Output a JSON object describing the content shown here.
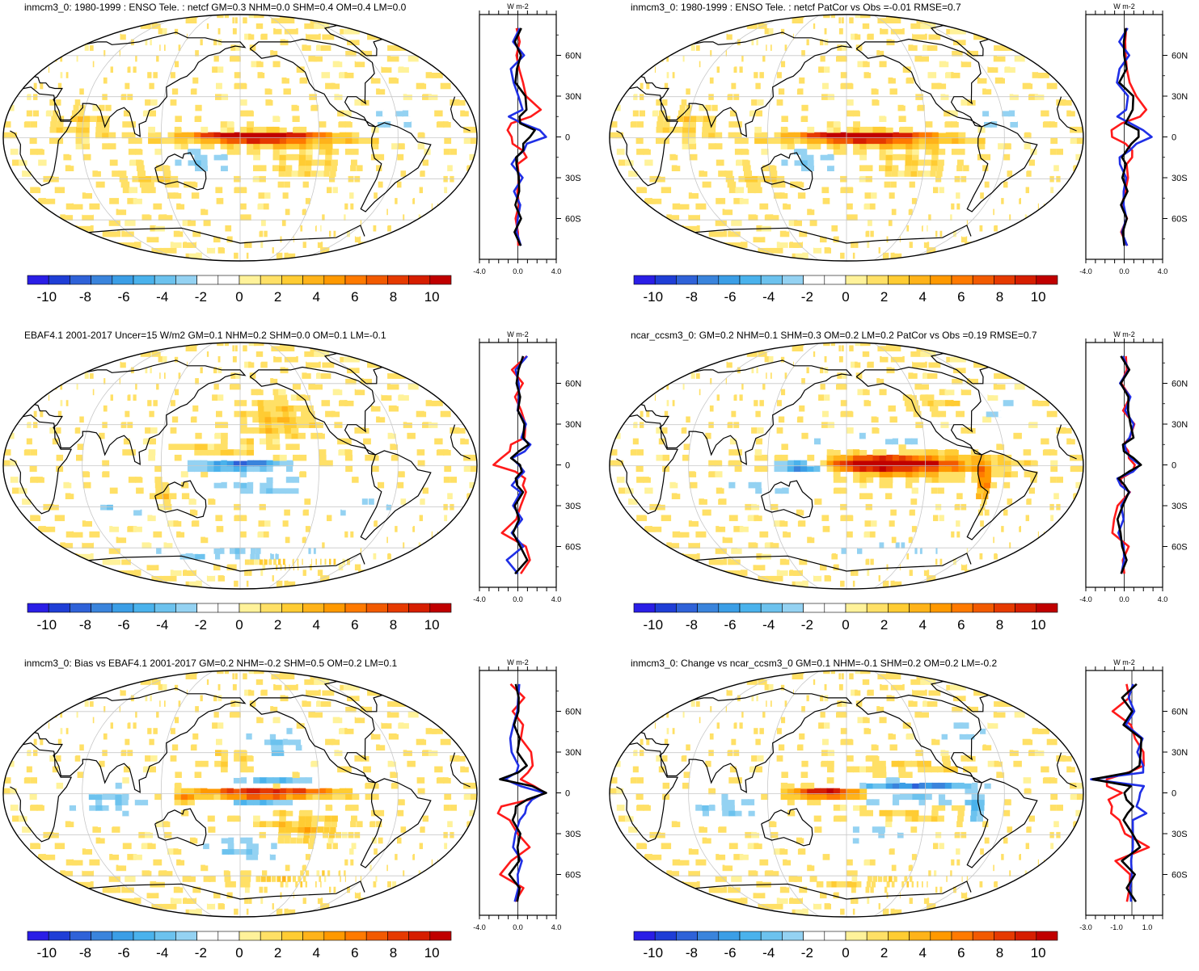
{
  "colors": {
    "scale": [
      "#2a1ee6",
      "#1f3ed6",
      "#2f62d8",
      "#3a84dc",
      "#3b9ee6",
      "#4ab2ec",
      "#6cc2ee",
      "#94d2f2",
      "#ffffff",
      "#ffffff",
      "#fff29a",
      "#ffe066",
      "#ffcc33",
      "#ffb31a",
      "#ff9900",
      "#ff7a00",
      "#f25a00",
      "#e63a00",
      "#d61e00",
      "#c00000"
    ],
    "red": "#ff1a1a",
    "blue": "#1f2fe6",
    "black": "#000000",
    "land": "#000000",
    "grid": "#c8c8c8"
  },
  "chart_data": [
    {
      "type": "heatmap",
      "title": "inmcm3_0: 1980-1999 : ENSO Tele. : netcf GM=0.3 NHM=0.0 SHM=0.4 OM=0.4 LM=0.0",
      "colorbar_ticks": [
        "-10",
        "-8",
        "-6",
        "-4",
        "-2",
        "0",
        "2",
        "4",
        "6",
        "8",
        "10"
      ],
      "colorbar_range": [
        -11,
        11
      ],
      "blobs": [
        {
          "lon": 190,
          "lat": 2,
          "rlon": 45,
          "rlat": 4,
          "value": 9
        },
        {
          "lon": 200,
          "lat": 0,
          "rlon": 70,
          "rlat": 7,
          "value": 5
        },
        {
          "lon": 195,
          "lat": 6,
          "rlon": 60,
          "rlat": 3,
          "value": -4
        },
        {
          "lon": 230,
          "lat": -20,
          "rlon": 30,
          "rlat": 10,
          "value": 2
        },
        {
          "lon": 150,
          "lat": -15,
          "rlon": 20,
          "rlat": 10,
          "value": -3
        },
        {
          "lon": 300,
          "lat": 15,
          "rlon": 20,
          "rlat": 12,
          "value": -2
        },
        {
          "lon": 60,
          "lat": 10,
          "rlon": 25,
          "rlat": 12,
          "value": 2
        },
        {
          "lon": 110,
          "lat": -30,
          "rlon": 25,
          "rlat": 8,
          "value": 2
        }
      ],
      "profile": {
        "label": "W m-2",
        "xlim": [
          -4,
          4
        ],
        "xticks": [
          "-4.0",
          "0.0",
          "4.0"
        ],
        "lat": [
          80,
          70,
          60,
          50,
          40,
          30,
          20,
          15,
          10,
          5,
          0,
          -5,
          -10,
          -15,
          -20,
          -30,
          -40,
          -50,
          -60,
          -70,
          -80
        ],
        "red": [
          0.0,
          0.2,
          -0.3,
          0.4,
          0.2,
          1.2,
          2.1,
          1.6,
          -0.5,
          -1.4,
          -0.7,
          -0.2,
          0.4,
          0.6,
          0.2,
          -0.2,
          0.3,
          -0.2,
          0.0,
          -0.1,
          0.0
        ],
        "blue": [
          0.0,
          -0.2,
          0.3,
          -0.4,
          -0.7,
          0.2,
          0.5,
          -0.6,
          0.3,
          2.0,
          3.2,
          1.1,
          0.3,
          -0.2,
          -0.3,
          0.2,
          -0.2,
          0.2,
          -0.1,
          0.1,
          0.0
        ],
        "black": [
          0.0,
          0.0,
          0.1,
          0.0,
          -0.2,
          0.6,
          1.2,
          0.3,
          -0.1,
          1.8,
          1.6,
          0.4,
          0.3,
          0.1,
          0.0,
          0.1,
          0.0,
          0.0,
          0.0,
          0.0,
          0.0
        ]
      }
    },
    {
      "type": "heatmap",
      "title": "inmcm3_0: 1980-1999 : ENSO Tele. : netcf PatCor vs Obs =-0.01 RMSE=0.7",
      "colorbar_ticks": [
        "-10",
        "-8",
        "-6",
        "-4",
        "-2",
        "0",
        "2",
        "4",
        "6",
        "8",
        "10"
      ],
      "colorbar_range": [
        -11,
        11
      ],
      "blobs": [
        {
          "lon": 190,
          "lat": 2,
          "rlon": 45,
          "rlat": 4,
          "value": 9
        },
        {
          "lon": 200,
          "lat": 0,
          "rlon": 70,
          "rlat": 7,
          "value": 5
        },
        {
          "lon": 195,
          "lat": 6,
          "rlon": 60,
          "rlat": 3,
          "value": -4
        },
        {
          "lon": 230,
          "lat": -20,
          "rlon": 30,
          "rlat": 10,
          "value": 2
        },
        {
          "lon": 150,
          "lat": -15,
          "rlon": 20,
          "rlat": 10,
          "value": -3
        },
        {
          "lon": 300,
          "lat": 15,
          "rlon": 20,
          "rlat": 12,
          "value": -2
        },
        {
          "lon": 60,
          "lat": 10,
          "rlon": 25,
          "rlat": 12,
          "value": 2
        },
        {
          "lon": 110,
          "lat": -30,
          "rlon": 25,
          "rlat": 8,
          "value": 2
        }
      ],
      "profile": {
        "label": "W m-2",
        "xlim": [
          -4,
          4
        ],
        "xticks": [
          "-4.0",
          "0.0",
          "4.0"
        ],
        "lat": [
          80,
          70,
          60,
          50,
          40,
          30,
          20,
          15,
          10,
          5,
          0,
          -5,
          -10,
          -15,
          -20,
          -30,
          -40,
          -50,
          -60,
          -70,
          -80
        ],
        "red": [
          0.0,
          0.4,
          -0.2,
          0.6,
          0.3,
          1.4,
          2.3,
          2.0,
          -0.4,
          -1.6,
          -1.0,
          0.3,
          0.5,
          0.8,
          0.6,
          0.1,
          0.3,
          -0.3,
          0.2,
          -0.1,
          0.0
        ],
        "blue": [
          0.0,
          -0.2,
          0.3,
          -0.4,
          -0.7,
          0.2,
          0.5,
          -0.6,
          0.3,
          2.0,
          3.2,
          1.1,
          0.3,
          -0.2,
          -0.3,
          0.2,
          -0.2,
          0.2,
          -0.1,
          0.1,
          0.0
        ],
        "black": [
          0.0,
          0.0,
          0.1,
          0.0,
          -0.2,
          0.6,
          1.2,
          0.3,
          -0.1,
          1.8,
          1.6,
          0.4,
          0.3,
          0.1,
          0.0,
          0.1,
          0.0,
          0.0,
          0.0,
          0.0,
          0.0
        ]
      }
    },
    {
      "type": "heatmap",
      "title": "EBAF4.1 2001-2017 Uncer=15 W/m2 GM=0.1 NHM=0.2 SHM=0.0 OM=0.1 LM=-0.1",
      "colorbar_ticks": [
        "-10",
        "-8",
        "-6",
        "-4",
        "-2",
        "0",
        "2",
        "4",
        "6",
        "8",
        "10"
      ],
      "colorbar_range": [
        -11,
        11
      ],
      "blobs": [
        {
          "lon": 180,
          "lat": 1,
          "rlon": 35,
          "rlat": 4,
          "value": -8
        },
        {
          "lon": 210,
          "lat": 35,
          "rlon": 25,
          "rlat": 15,
          "value": 3
        },
        {
          "lon": 165,
          "lat": 12,
          "rlon": 35,
          "rlat": 6,
          "value": 2
        },
        {
          "lon": 200,
          "lat": -15,
          "rlon": 40,
          "rlat": 7,
          "value": -3
        },
        {
          "lon": 230,
          "lat": 5,
          "rlon": 30,
          "rlat": 3,
          "value": 2
        },
        {
          "lon": 120,
          "lat": -22,
          "rlon": 15,
          "rlat": 8,
          "value": 2
        },
        {
          "lon": 80,
          "lat": -30,
          "rlon": 25,
          "rlat": 8,
          "value": -2
        },
        {
          "lon": 180,
          "lat": -65,
          "rlon": 90,
          "rlat": 5,
          "value": -3
        },
        {
          "lon": 230,
          "lat": -70,
          "rlon": 60,
          "rlat": 4,
          "value": 3
        },
        {
          "lon": 280,
          "lat": -30,
          "rlon": 25,
          "rlat": 8,
          "value": -2
        }
      ],
      "profile": {
        "label": "W m-2",
        "xlim": [
          -4,
          4
        ],
        "xticks": [
          "-4.0",
          "0.0",
          "4.0"
        ],
        "lat": [
          80,
          70,
          60,
          50,
          40,
          30,
          20,
          15,
          10,
          5,
          0,
          -5,
          -10,
          -15,
          -20,
          -30,
          -40,
          -50,
          -60,
          -70,
          -80
        ],
        "red": [
          0.6,
          -0.3,
          0.3,
          -0.2,
          0.4,
          0.6,
          1.0,
          -0.6,
          -1.2,
          -1.7,
          -2.2,
          -0.4,
          0.5,
          0.8,
          1.0,
          0.3,
          -0.3,
          -1.4,
          0.5,
          1.6,
          0.0
        ],
        "blue": [
          0.8,
          -0.2,
          0.2,
          -0.1,
          0.3,
          0.5,
          0.7,
          1.1,
          0.5,
          -0.3,
          0.2,
          0.3,
          0.0,
          -0.3,
          0.1,
          -0.2,
          0.1,
          -0.3,
          0.3,
          -1.0,
          0.0
        ],
        "black": [
          0.7,
          -0.2,
          0.2,
          -0.1,
          0.3,
          0.5,
          0.6,
          0.8,
          0.2,
          -0.4,
          0.0,
          0.2,
          0.1,
          0.0,
          0.2,
          0.0,
          -0.1,
          -0.4,
          0.3,
          0.8,
          0.0
        ]
      }
    },
    {
      "type": "heatmap",
      "title": "ncar_ccsm3_0: GM=0.2 NHM=0.1 SHM=0.3 OM=0.2 LM=0.2 PatCor vs Obs =0.19 RMSE=0.7",
      "colorbar_ticks": [
        "-10",
        "-8",
        "-6",
        "-4",
        "-2",
        "0",
        "2",
        "4",
        "6",
        "8",
        "10"
      ],
      "colorbar_range": [
        -11,
        11
      ],
      "blobs": [
        {
          "lon": 205,
          "lat": 2,
          "rlon": 55,
          "rlat": 5,
          "value": 9
        },
        {
          "lon": 215,
          "lat": 0,
          "rlon": 75,
          "rlat": 9,
          "value": 5
        },
        {
          "lon": 145,
          "lat": 0,
          "rlon": 20,
          "rlat": 4,
          "value": -9
        },
        {
          "lon": 160,
          "lat": 0,
          "rlon": 30,
          "rlat": 9,
          "value": -3
        },
        {
          "lon": 285,
          "lat": -12,
          "rlon": 6,
          "rlat": 14,
          "value": 5
        },
        {
          "lon": 200,
          "lat": 18,
          "rlon": 60,
          "rlat": 4,
          "value": -2
        },
        {
          "lon": 120,
          "lat": -15,
          "rlon": 30,
          "rlat": 6,
          "value": -2
        },
        {
          "lon": 220,
          "lat": -60,
          "rlon": 70,
          "rlat": 4,
          "value": -2
        },
        {
          "lon": 310,
          "lat": 40,
          "rlon": 20,
          "rlat": 8,
          "value": -2
        },
        {
          "lon": 250,
          "lat": 45,
          "rlon": 25,
          "rlat": 6,
          "value": 2
        }
      ],
      "profile": {
        "label": "W m-2",
        "xlim": [
          -4,
          4
        ],
        "xticks": [
          "-4.0",
          "0.0",
          "4.0"
        ],
        "lat": [
          80,
          70,
          60,
          50,
          40,
          30,
          20,
          15,
          10,
          5,
          0,
          -5,
          -10,
          -15,
          -20,
          -30,
          -40,
          -50,
          -60,
          -70,
          -80
        ],
        "red": [
          0.0,
          0.3,
          -0.2,
          0.4,
          0.2,
          0.7,
          0.9,
          -0.3,
          0.2,
          0.8,
          1.2,
          0.5,
          -0.3,
          0.0,
          0.4,
          -0.4,
          -1.4,
          -0.9,
          0.2,
          0.0,
          0.0
        ],
        "blue": [
          0.0,
          0.2,
          -0.1,
          0.3,
          0.4,
          0.8,
          0.6,
          -0.3,
          0.3,
          1.0,
          1.4,
          0.7,
          -0.4,
          -0.3,
          0.2,
          0.0,
          -0.3,
          -0.5,
          0.0,
          -0.2,
          0.0
        ],
        "black": [
          0.0,
          0.2,
          -0.1,
          0.3,
          0.4,
          0.8,
          0.7,
          -0.3,
          0.3,
          1.0,
          1.4,
          0.6,
          -0.3,
          -0.2,
          0.3,
          -0.1,
          -0.6,
          -0.6,
          0.1,
          -0.1,
          0.0
        ]
      }
    },
    {
      "type": "heatmap",
      "title": "inmcm3_0: Bias vs EBAF4.1 2001-2017 GM=0.2 NHM=-0.2 SHM=0.5 OM=0.2 LM=0.1",
      "colorbar_ticks": [
        "-10",
        "-8",
        "-6",
        "-4",
        "-2",
        "0",
        "2",
        "4",
        "6",
        "8",
        "10"
      ],
      "colorbar_range": [
        -11,
        11
      ],
      "blobs": [
        {
          "lon": 200,
          "lat": 1,
          "rlon": 50,
          "rlat": 5,
          "value": 10
        },
        {
          "lon": 200,
          "lat": 8,
          "rlon": 50,
          "rlat": 3,
          "value": -6
        },
        {
          "lon": 200,
          "lat": -6,
          "rlon": 45,
          "rlat": 3,
          "value": -5
        },
        {
          "lon": 210,
          "lat": 35,
          "rlon": 25,
          "rlat": 12,
          "value": -3
        },
        {
          "lon": 180,
          "lat": 25,
          "rlon": 25,
          "rlat": 8,
          "value": 2
        },
        {
          "lon": 230,
          "lat": -25,
          "rlon": 35,
          "rlat": 10,
          "value": 3
        },
        {
          "lon": 140,
          "lat": -3,
          "rlon": 8,
          "rlat": 4,
          "value": 5
        },
        {
          "lon": 80,
          "lat": -5,
          "rlon": 30,
          "rlat": 10,
          "value": -3
        },
        {
          "lon": 180,
          "lat": -40,
          "rlon": 30,
          "rlat": 10,
          "value": -3
        },
        {
          "lon": 220,
          "lat": -62,
          "rlon": 70,
          "rlat": 5,
          "value": 2
        }
      ],
      "profile": {
        "label": "W m-2",
        "xlim": [
          -4,
          4
        ],
        "xticks": [
          "-4.0",
          "0.0",
          "4.0"
        ],
        "lat": [
          80,
          70,
          60,
          50,
          40,
          30,
          20,
          15,
          10,
          5,
          0,
          -5,
          -10,
          -15,
          -20,
          -30,
          -40,
          -50,
          -60,
          -70,
          -80
        ],
        "red": [
          -0.6,
          0.4,
          -0.2,
          0.2,
          0.6,
          1.2,
          1.6,
          0.7,
          0.4,
          2.0,
          2.6,
          1.0,
          -1.4,
          -2.0,
          -1.2,
          0.3,
          1.0,
          -0.6,
          -1.8,
          0.4,
          0.0
        ],
        "blue": [
          0.5,
          -0.3,
          0.2,
          -0.6,
          -0.8,
          -0.5,
          -0.2,
          -0.3,
          -1.0,
          0.3,
          2.4,
          1.6,
          1.2,
          0.5,
          0.0,
          -0.2,
          -0.4,
          0.2,
          0.3,
          -0.3,
          0.0
        ],
        "black": [
          0.0,
          0.0,
          0.0,
          -0.2,
          -0.1,
          0.3,
          0.6,
          0.2,
          -1.6,
          1.2,
          2.8,
          1.3,
          -0.2,
          -0.6,
          -0.4,
          0.0,
          0.3,
          -0.2,
          -0.6,
          0.0,
          0.0
        ]
      }
    },
    {
      "type": "heatmap",
      "title": "inmcm3_0: Change vs ncar_ccsm3_0 GM=0.1 NHM=-0.1 SHM=0.2 OM=0.2 LM=-0.2",
      "colorbar_ticks": [
        "-10",
        "-8",
        "-6",
        "-4",
        "-2",
        "0",
        "2",
        "4",
        "6",
        "8",
        "10"
      ],
      "colorbar_range": [
        -11,
        11
      ],
      "blobs": [
        {
          "lon": 165,
          "lat": 1,
          "rlon": 30,
          "rlat": 5,
          "value": 10
        },
        {
          "lon": 225,
          "lat": 6,
          "rlon": 60,
          "rlat": 3,
          "value": -7
        },
        {
          "lon": 225,
          "lat": -4,
          "rlon": 55,
          "rlat": 3,
          "value": -4
        },
        {
          "lon": 280,
          "lat": -10,
          "rlon": 6,
          "rlat": 12,
          "value": -5
        },
        {
          "lon": 230,
          "lat": 20,
          "rlon": 50,
          "rlat": 5,
          "value": 2
        },
        {
          "lon": 230,
          "lat": -15,
          "rlon": 40,
          "rlat": 6,
          "value": 2
        },
        {
          "lon": 90,
          "lat": -10,
          "rlon": 30,
          "rlat": 8,
          "value": -3
        },
        {
          "lon": 200,
          "lat": -30,
          "rlon": 30,
          "rlat": 8,
          "value": -2
        },
        {
          "lon": 210,
          "lat": -65,
          "rlon": 60,
          "rlat": 4,
          "value": 2
        },
        {
          "lon": 280,
          "lat": 45,
          "rlon": 25,
          "rlat": 8,
          "value": -2
        }
      ],
      "profile": {
        "label": "W m-2",
        "xlim": [
          -3,
          2
        ],
        "xticks": [
          "-3.0",
          "-1.0",
          "1.0"
        ],
        "lat": [
          80,
          70,
          60,
          50,
          40,
          30,
          20,
          15,
          10,
          5,
          0,
          -5,
          -10,
          -15,
          -20,
          -30,
          -40,
          -50,
          -60,
          -70,
          -80
        ],
        "red": [
          0.0,
          -0.5,
          -1.0,
          -0.2,
          0.2,
          0.9,
          0.5,
          -0.4,
          -1.3,
          -1.6,
          -1.0,
          -1.4,
          -1.0,
          -1.6,
          -1.0,
          -0.4,
          1.2,
          -1.3,
          0.2,
          -0.5,
          0.0
        ],
        "blue": [
          0.3,
          -0.3,
          0.1,
          -0.2,
          0.4,
          0.7,
          0.4,
          0.9,
          -2.4,
          0.5,
          0.4,
          0.8,
          0.3,
          0.6,
          0.2,
          -0.2,
          0.4,
          -0.4,
          0.3,
          -0.3,
          0.0
        ],
        "black": [
          0.2,
          -0.4,
          -0.3,
          -0.2,
          0.3,
          0.8,
          0.4,
          0.2,
          -2.6,
          -0.4,
          -0.3,
          -0.1,
          -0.2,
          -0.4,
          -0.2,
          -0.3,
          0.8,
          -0.8,
          0.2,
          -0.2,
          0.0
        ]
      }
    }
  ],
  "profile_lat_labels": [
    "60N",
    "30N",
    "0",
    "30S",
    "60S"
  ]
}
